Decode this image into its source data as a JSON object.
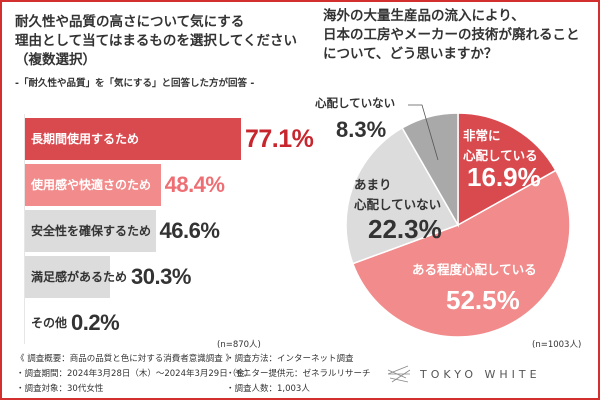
{
  "colors": {
    "frame": "#d32f2f",
    "dark_red": "#d94a4f",
    "pink": "#f28b8b",
    "light_gray": "#dcdcdc",
    "gray": "#a9a9a9",
    "value_red": "#c8262e",
    "value_pink": "#ee6f73",
    "text": "#333333"
  },
  "chart_data": [
    {
      "type": "bar",
      "orientation": "horizontal",
      "title": [
        "耐久性や品質の高さについて気にする",
        "理由として当てはまるものを選択してください",
        "（複数選択）"
      ],
      "subtitle": "-「耐久性や品質」を「気にする」と回答した方が回答 -",
      "categories": [
        "長期間使用するため",
        "使用感や快適さのため",
        "安全性を確保するため",
        "満足感があるため",
        "その他"
      ],
      "values": [
        77.1,
        48.4,
        46.6,
        30.3,
        0.2
      ],
      "value_labels": [
        "77.1%",
        "48.4%",
        "46.6%",
        "30.3%",
        "0.2%"
      ],
      "unit": "%",
      "sample": "(n=870人)"
    },
    {
      "type": "pie",
      "title": [
        "海外の大量生産品の流入により、",
        "日本の工房やメーカーの技術が廃れること",
        "について、どう思いますか？"
      ],
      "categories": [
        "非常に心配している",
        "ある程度心配している",
        "あまり心配していない",
        "心配していない"
      ],
      "label_lines": [
        [
          "非常に",
          "心配している"
        ],
        [
          "ある程度心配している"
        ],
        [
          "あまり",
          "心配していない"
        ],
        [
          "心配していない"
        ]
      ],
      "values": [
        16.9,
        52.5,
        22.3,
        8.3
      ],
      "value_labels": [
        "16.9%",
        "52.5%",
        "22.3%",
        "8.3%"
      ],
      "unit": "%",
      "sample": "(n=1003人)"
    }
  ],
  "footer": {
    "left": [
      "《 調査概要：商品の品質と色に対する消費者意識調査 》",
      "・調査期間：2024年3月28日（木）〜2024年3月29日（金）",
      "・調査対象：30代女性"
    ],
    "right": [
      "・調査方法：インターネット調査",
      "・モニター提供元：ゼネラルリサーチ",
      "・調査人数：1,003人"
    ],
    "logo": "TOKYO WHITE"
  }
}
